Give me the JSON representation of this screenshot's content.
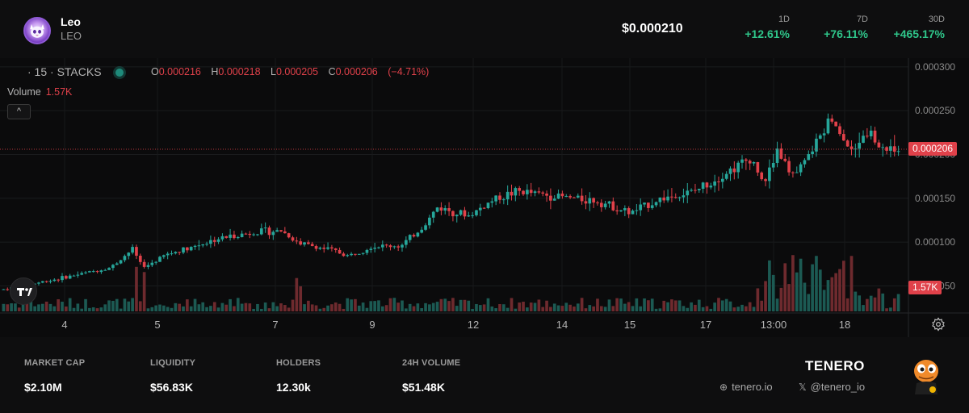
{
  "header": {
    "token_name": "Leo",
    "token_symbol": "LEO",
    "price": "$0.000210",
    "changes": [
      {
        "label": "1D",
        "value": "+12.61%"
      },
      {
        "label": "7D",
        "value": "+76.11%"
      },
      {
        "label": "30D",
        "value": "+465.17%"
      }
    ]
  },
  "legend": {
    "interval": "· 15",
    "exchange": "· STACKS",
    "o_label": "O",
    "o_value": "0.000216",
    "h_label": "H",
    "h_value": "0.000218",
    "l_label": "L",
    "l_value": "0.000205",
    "c_label": "C",
    "c_value": "0.000206",
    "change": "(−4.71%)",
    "volume_label": "Volume",
    "volume_value": "1.57K",
    "collapse_glyph": "^"
  },
  "price_tag": "0.000206",
  "volume_tag": "1.57K",
  "chart_data": {
    "type": "candlestick",
    "y_axis": {
      "ticks": [
        "0.000300",
        "0.000250",
        "0.000200",
        "0.000150",
        "0.000100",
        "0.000050"
      ],
      "ylim": [
        2e-05,
        0.00031
      ]
    },
    "x_axis": {
      "ticks": [
        "4",
        "5",
        "7",
        "9",
        "12",
        "14",
        "15",
        "17",
        "13:00",
        "18"
      ]
    },
    "price_path": [
      [
        0,
        4.6e-05
      ],
      [
        0.06,
        5.8e-05
      ],
      [
        0.12,
        7.1e-05
      ],
      [
        0.145,
        9.3e-05
      ],
      [
        0.155,
        7e-05
      ],
      [
        0.18,
        8.5e-05
      ],
      [
        0.24,
        0.000104
      ],
      [
        0.285,
        0.000112
      ],
      [
        0.31,
        0.000113
      ],
      [
        0.33,
        9.9e-05
      ],
      [
        0.37,
        9e-05
      ],
      [
        0.385,
        8.4e-05
      ],
      [
        0.41,
        9.5e-05
      ],
      [
        0.445,
        9.6e-05
      ],
      [
        0.47,
        0.000119
      ],
      [
        0.485,
        0.00014
      ],
      [
        0.52,
        0.00013
      ],
      [
        0.55,
        0.00015
      ],
      [
        0.575,
        0.000158
      ],
      [
        0.62,
        0.000152
      ],
      [
        0.665,
        0.000147
      ],
      [
        0.7,
        0.000133
      ],
      [
        0.735,
        0.00015
      ],
      [
        0.77,
        0.000157
      ],
      [
        0.8,
        0.000175
      ],
      [
        0.835,
        0.000196
      ],
      [
        0.85,
        0.00017
      ],
      [
        0.865,
        0.000205
      ],
      [
        0.885,
        0.000175
      ],
      [
        0.91,
        0.000215
      ],
      [
        0.925,
        0.000245
      ],
      [
        0.945,
        0.000205
      ],
      [
        0.965,
        0.00023
      ],
      [
        0.98,
        0.000206
      ]
    ],
    "last_price": 0.000206
  },
  "footer": {
    "stats": [
      {
        "label": "MARKET CAP",
        "value": "$2.10M"
      },
      {
        "label": "LIQUIDITY",
        "value": "$56.83K"
      },
      {
        "label": "HOLDERS",
        "value": "12.30k"
      },
      {
        "label": "24H VOLUME",
        "value": "$51.48K"
      }
    ],
    "brand": "TENERO",
    "links": [
      {
        "icon": "globe-icon",
        "text": "tenero.io"
      },
      {
        "icon": "x-icon",
        "text": "@tenero_io"
      }
    ]
  },
  "colors": {
    "up": "#26a69a",
    "down": "#e0414a",
    "volume_up": "#1c5a53",
    "volume_down": "#6e2a2e",
    "positive_change": "#2fc58a"
  }
}
